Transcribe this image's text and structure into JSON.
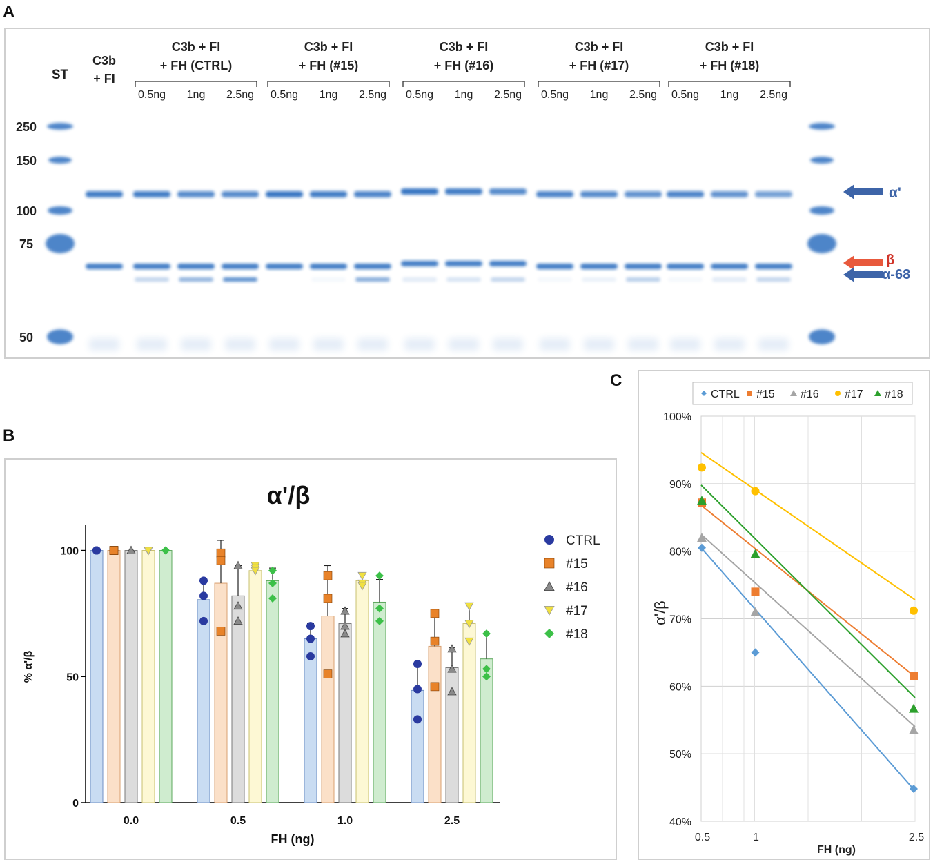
{
  "panel_labels": {
    "a": "A",
    "b": "B",
    "c": "C"
  },
  "colors": {
    "gel_band": "#2f6fc0",
    "arrow_blue": "#3d64a8",
    "arrow_red": "#e8593c",
    "ctrl": "#2a3aa0",
    "s15": "#e8832a",
    "s16": "#8a8a8a",
    "s17": "#f0e040",
    "s18": "#3cc048",
    "c_ctrl": "#5b9bd5",
    "c_15": "#ed7d31",
    "c_16": "#a5a5a5",
    "c_17": "#ffc000",
    "c_18": "#2ca02c"
  },
  "gel": {
    "marker_header": "ST",
    "marker_sizes": [
      "250",
      "150",
      "100",
      "75",
      "50"
    ],
    "lane0_line1": "C3b",
    "lane0_line2": "+ FI",
    "groups": [
      {
        "line1": "C3b  +  FI",
        "line2": "+ FH (CTRL)"
      },
      {
        "line1": "C3b  +  FI",
        "line2": "+ FH (#15)"
      },
      {
        "line1": "C3b  +  FI",
        "line2": "+ FH (#16)"
      },
      {
        "line1": "C3b  +  FI",
        "line2": "+ FH (#17)"
      },
      {
        "line1": "C3b  +  FI",
        "line2": "+ FH (#18)"
      }
    ],
    "doses": [
      "0.5ng",
      "1ng",
      "2.5ng"
    ],
    "band_labels": {
      "alpha_prime": "α'",
      "beta": "β",
      "alpha68": "α-68"
    }
  },
  "chart_data": [
    {
      "type": "bar",
      "title": "α'/β",
      "xlabel": "FH (ng)",
      "ylabel": "% α'/β",
      "categories": [
        "0.0",
        "0.5",
        "1.0",
        "2.5"
      ],
      "ylim": [
        0,
        110
      ],
      "yticks": [
        0,
        50,
        100
      ],
      "legend_position": "right",
      "series": [
        {
          "name": "CTRL",
          "marker": "circle",
          "values": [
            100,
            80.5,
            65,
            44.5
          ],
          "errors": [
            0,
            8,
            6,
            10
          ],
          "points": [
            [
              100,
              100,
              100
            ],
            [
              88,
              82,
              72
            ],
            [
              70,
              65,
              58
            ],
            [
              55,
              45,
              33
            ]
          ]
        },
        {
          "name": "#15",
          "marker": "square",
          "values": [
            100,
            87,
            74,
            62
          ],
          "errors": [
            0,
            17,
            20,
            14
          ],
          "points": [
            [
              100,
              100,
              100
            ],
            [
              99,
              96,
              68
            ],
            [
              90,
              81,
              51
            ],
            [
              75,
              64,
              46
            ]
          ]
        },
        {
          "name": "#16",
          "marker": "triangle-up",
          "values": [
            100,
            82,
            71,
            53.5
          ],
          "errors": [
            0,
            12,
            6,
            8
          ],
          "points": [
            [
              100,
              100,
              100
            ],
            [
              94,
              78,
              72
            ],
            [
              76,
              70,
              67
            ],
            [
              61,
              53,
              44
            ]
          ]
        },
        {
          "name": "#17",
          "marker": "triangle-down",
          "values": [
            100,
            92,
            88,
            71
          ],
          "errors": [
            0,
            3,
            3,
            8
          ],
          "points": [
            [
              100,
              100,
              100
            ],
            [
              94,
              93,
              92
            ],
            [
              90,
              87,
              86
            ],
            [
              78,
              71,
              64
            ]
          ]
        },
        {
          "name": "#18",
          "marker": "diamond",
          "values": [
            100,
            88,
            79.5,
            57
          ],
          "errors": [
            0,
            5,
            9,
            10
          ],
          "points": [
            [
              100,
              100,
              100
            ],
            [
              92,
              87,
              81
            ],
            [
              90,
              77,
              72
            ],
            [
              67,
              53,
              50
            ]
          ]
        }
      ]
    },
    {
      "type": "scatter",
      "xlabel": "FH (ng)",
      "ylabel": "α'/β",
      "x": [
        0.5,
        1,
        2.5
      ],
      "x_tick_labels": [
        "0.5",
        "1",
        "2.5"
      ],
      "xlim": [
        0.5,
        2.5
      ],
      "ylim": [
        40,
        100
      ],
      "yticks": [
        "40%",
        "50%",
        "60%",
        "70%",
        "80%",
        "90%",
        "100%"
      ],
      "legend_position": "top",
      "series": [
        {
          "name": "CTRL",
          "marker": "diamond",
          "values": [
            80.5,
            65,
            44.8
          ],
          "trend": [
            80.5,
            44.5
          ]
        },
        {
          "name": "#15",
          "marker": "square",
          "values": [
            87.2,
            74,
            61.5
          ],
          "trend": [
            86.8,
            61.4
          ]
        },
        {
          "name": "#16",
          "marker": "triangle",
          "values": [
            82,
            71,
            53.5
          ],
          "trend": [
            82.5,
            54.0
          ]
        },
        {
          "name": "#17",
          "marker": "circle",
          "values": [
            92.4,
            88.9,
            71.2
          ],
          "trend": [
            94.6,
            72.8
          ]
        },
        {
          "name": "#18",
          "marker": "triangle",
          "values": [
            87.5,
            79.6,
            56.7
          ],
          "trend": [
            89.8,
            58.3
          ]
        }
      ]
    }
  ]
}
